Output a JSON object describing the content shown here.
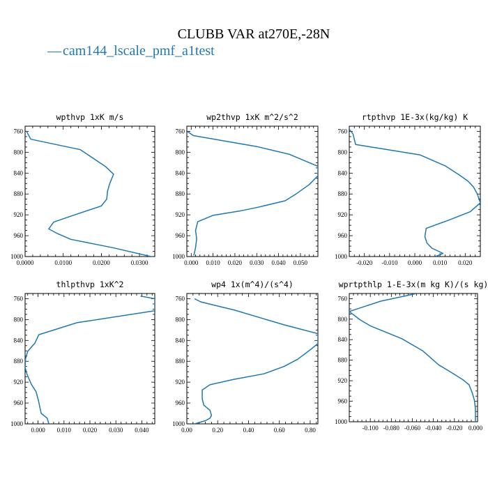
{
  "figure": {
    "title": "CLUBB VAR at270E,-28N",
    "legend_label": "cam144_lscale_pmf_a1test",
    "legend_marker": "—",
    "line_color": "#1f77b4"
  },
  "chart_data": [
    {
      "type": "line",
      "title": "wpthvp  1xK m/s",
      "xlim": [
        0,
        0.034
      ],
      "ylim": [
        1000,
        750
      ],
      "xticks": [
        "0.0000",
        "0.0100",
        "0.0200",
        "0.0300"
      ],
      "xtick_values": [
        0,
        0.01,
        0.02,
        0.03
      ],
      "yticks": [
        "760",
        "800",
        "840",
        "880",
        "920",
        "960",
        "1000"
      ],
      "ytick_values": [
        760,
        800,
        840,
        880,
        920,
        960,
        1000
      ],
      "series": [
        {
          "x": [
            0.0003,
            0.0015,
            0.0145,
            0.021,
            0.0232,
            0.0222,
            0.0216,
            0.0214,
            0.02,
            0.013,
            0.0075,
            0.0062,
            0.0085,
            0.012,
            0.023,
            0.033
          ],
          "y": [
            759,
            775,
            795,
            827,
            842,
            860,
            875,
            890,
            903,
            920,
            934,
            947,
            956,
            967,
            983,
            1000
          ]
        }
      ]
    },
    {
      "type": "line",
      "title": "wp2thvp  1xK m^2/s^2",
      "xlim": [
        -0.002,
        0.058
      ],
      "ylim": [
        1000,
        750
      ],
      "xticks": [
        "0.000",
        "0.010",
        "0.020",
        "0.030",
        "0.040",
        "0.050"
      ],
      "xtick_values": [
        0,
        0.01,
        0.02,
        0.03,
        0.04,
        0.05
      ],
      "yticks": [
        "760",
        "800",
        "840",
        "880",
        "920",
        "960",
        "1000"
      ],
      "ytick_values": [
        760,
        800,
        840,
        880,
        920,
        960,
        1000
      ],
      "series": [
        {
          "x": [
            -0.0018,
            0.001,
            0.03,
            0.045,
            0.058,
            0.058,
            0.054,
            0.048,
            0.043,
            0.03,
            0.023,
            0.01,
            0.003,
            0.002,
            0.0025,
            0.002,
            0.0012
          ],
          "y": [
            760,
            768,
            789,
            804,
            827,
            845,
            862,
            880,
            893,
            906,
            912,
            921,
            933,
            950,
            966,
            983,
            998
          ]
        }
      ]
    },
    {
      "type": "line",
      "title": "rtpthvp  1E-3x(kg/kg) K",
      "xlim": [
        -0.026,
        0.026
      ],
      "ylim": [
        1000,
        750
      ],
      "xticks": [
        "-0.020",
        "-0.010",
        "0.000",
        "0.010",
        "0.020"
      ],
      "xtick_values": [
        -0.02,
        -0.01,
        0,
        0.01,
        0.02
      ],
      "yticks": [
        "760",
        "800",
        "840",
        "880",
        "920",
        "960",
        "1000"
      ],
      "ytick_values": [
        760,
        800,
        840,
        880,
        920,
        960,
        1000
      ],
      "series": [
        {
          "x": [
            -0.026,
            -0.0245,
            -0.0235,
            0.002,
            0.012,
            0.0175,
            0.021,
            0.0232,
            0.0248,
            0.026,
            0.022,
            0.013,
            0.0045,
            0.004,
            0.0048,
            0.0068,
            0.0112,
            0.0082
          ],
          "y": [
            756,
            765,
            785,
            805,
            826,
            843,
            855,
            866,
            880,
            897,
            914,
            931,
            946,
            962,
            974,
            984,
            994,
            1000
          ]
        }
      ]
    },
    {
      "type": "line",
      "title": "thlpthvp  1xK^2",
      "xlim": [
        -0.005,
        0.045
      ],
      "ylim": [
        1000,
        750
      ],
      "xticks": [
        "0.000",
        "0.010",
        "0.020",
        "0.030",
        "0.040"
      ],
      "xtick_values": [
        0,
        0.01,
        0.02,
        0.03,
        0.04
      ],
      "yticks": [
        "760",
        "800",
        "840",
        "880",
        "920",
        "960",
        "1000"
      ],
      "ytick_values": [
        760,
        800,
        840,
        880,
        920,
        960,
        1000
      ],
      "series": [
        {
          "x": [
            0.0395,
            0.045,
            0.045,
            0.015,
            0.0003,
            -0.0012,
            -0.004,
            -0.0048,
            -0.005,
            -0.0042,
            -0.0025,
            -0.0008,
            0.0002,
            0.0006,
            0.0012,
            0.0035,
            0.0042
          ],
          "y": [
            755,
            760,
            783,
            806,
            829,
            845,
            861,
            875,
            892,
            906,
            925,
            938,
            956,
            966,
            980,
            989,
            1000
          ]
        }
      ]
    },
    {
      "type": "line",
      "title": "wp4  1x(m^4)/(s^4)",
      "xlim": [
        0,
        0.85
      ],
      "ylim": [
        1000,
        750
      ],
      "xticks": [
        "0.00",
        "0.20",
        "0.40",
        "0.60",
        "0.80"
      ],
      "xtick_values": [
        0,
        0.2,
        0.4,
        0.6,
        0.8
      ],
      "yticks": [
        "760",
        "800",
        "840",
        "880",
        "920",
        "960",
        "1000"
      ],
      "ytick_values": [
        760,
        800,
        840,
        880,
        920,
        960,
        1000
      ],
      "series": [
        {
          "x": [
            0.05,
            0.09,
            0.31,
            0.63,
            0.85,
            0.85,
            0.8,
            0.72,
            0.63,
            0.5,
            0.3,
            0.15,
            0.1,
            0.1,
            0.11,
            0.15,
            0.16,
            0.15,
            0.12,
            0.05
          ],
          "y": [
            760,
            766,
            782,
            810,
            827,
            846,
            858,
            876,
            890,
            904,
            915,
            925,
            935,
            952,
            964,
            974,
            984,
            989,
            994,
            1000
          ]
        }
      ]
    },
    {
      "type": "line",
      "title": "wprtpthlp  1-E-3x(m kg K)/(s kg)",
      "xlim": [
        -0.12,
        0.002
      ],
      "ylim": [
        1000,
        750
      ],
      "xticks": [
        "-0.100",
        "-0.080",
        "-0.060",
        "-0.040",
        "-0.020",
        "0.000"
      ],
      "xtick_values": [
        -0.1,
        -0.08,
        -0.06,
        -0.04,
        -0.02,
        0
      ],
      "yticks": [
        "760",
        "800",
        "840",
        "880",
        "920",
        "960",
        "1000"
      ],
      "ytick_values": [
        760,
        800,
        840,
        880,
        920,
        960,
        1000
      ],
      "series": [
        {
          "x": [
            -0.056,
            -0.09,
            -0.12,
            -0.11,
            -0.1,
            -0.07,
            -0.05,
            -0.035,
            -0.022,
            -0.012,
            -0.006,
            -0.003,
            -0.001,
            0,
            0
          ],
          "y": [
            750,
            765,
            785,
            801,
            813,
            838,
            862,
            889,
            905,
            918,
            928,
            944,
            958,
            975,
            1000
          ]
        }
      ]
    }
  ]
}
